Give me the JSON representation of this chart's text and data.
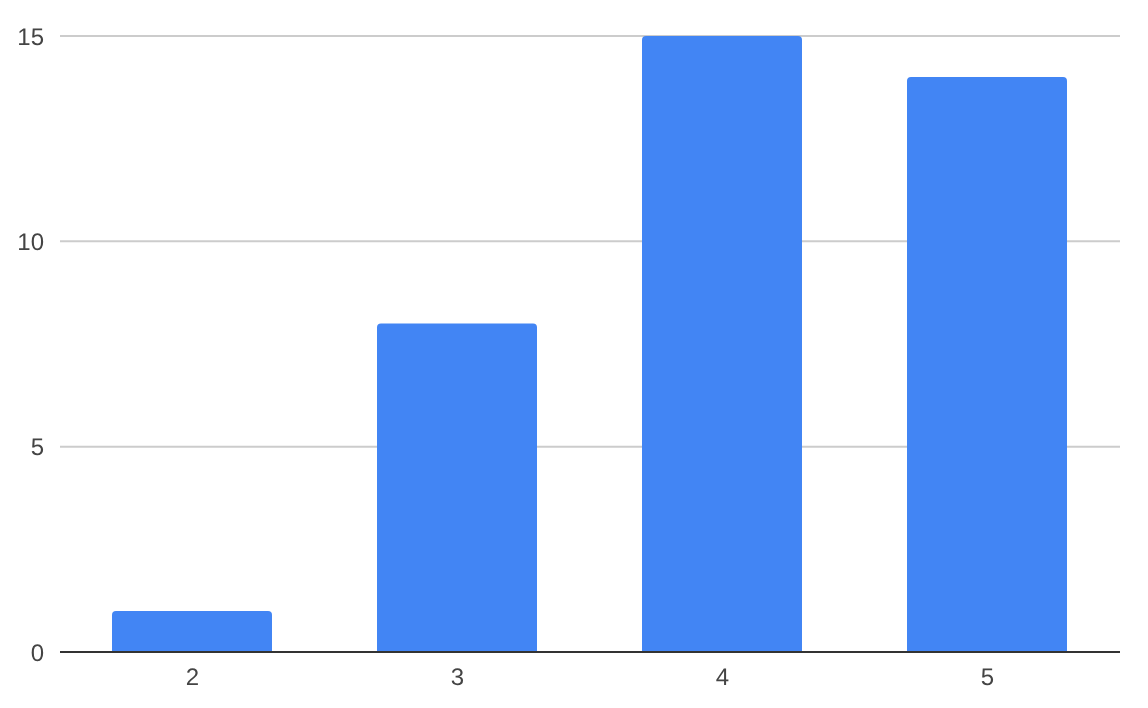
{
  "chart_data": {
    "type": "bar",
    "categories": [
      "2",
      "3",
      "4",
      "5"
    ],
    "values": [
      1,
      8,
      15,
      14
    ],
    "color": "#4285f4",
    "ylim": [
      0,
      15
    ],
    "yticks": [
      0,
      5,
      10,
      15
    ],
    "grid": "y",
    "legend": false
  }
}
